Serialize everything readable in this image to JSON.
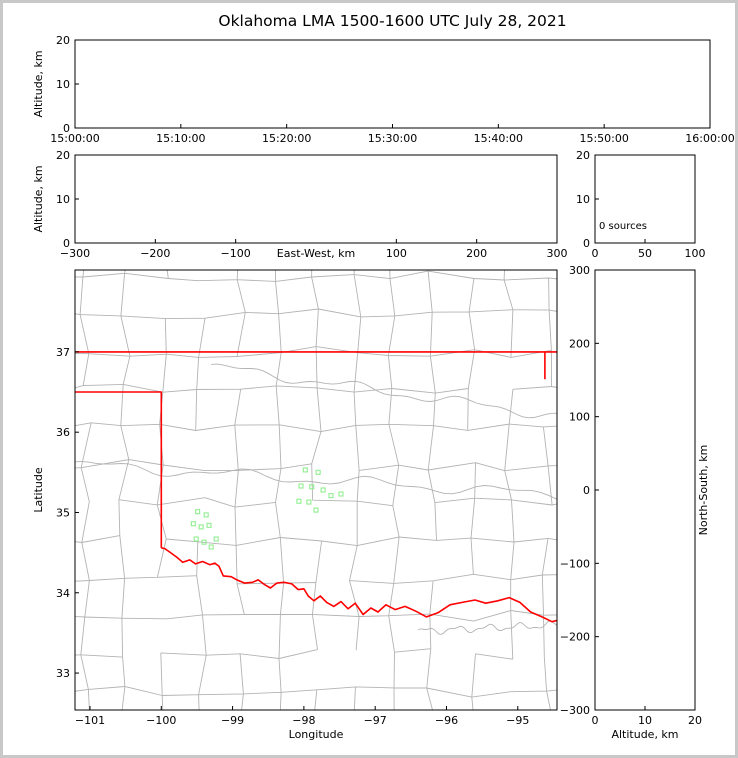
{
  "title": "Oklahoma LMA 1500-1600 UTC July 28, 2021",
  "colors": {
    "background": "#ffffff",
    "frame_border": "#c8c8c8",
    "axis": "#000000",
    "county_lines": "#b3b3b3",
    "state_border": "#ff0000",
    "sources": "#90ee90"
  },
  "chart_data": [
    {
      "name": "time_height",
      "type": "scatter",
      "xlabel": "",
      "ylabel": "Altitude, km",
      "x_ticks": [
        "15:00:00",
        "15:10:00",
        "15:20:00",
        "15:30:00",
        "15:40:00",
        "15:50:00",
        "16:00:00"
      ],
      "x_tick_vals": [
        0,
        1,
        2,
        3,
        4,
        5,
        6
      ],
      "xlim": [
        0,
        6
      ],
      "y_ticks": [
        "20",
        "10",
        "0"
      ],
      "y_tick_vals": [
        20,
        10,
        0
      ],
      "ylim": [
        0,
        20
      ],
      "points": []
    },
    {
      "name": "ew_height",
      "type": "scatter",
      "xlabel": "East-West, km",
      "xlabel_inline": true,
      "ylabel": "Altitude, km",
      "x_ticks": [
        "−300",
        "−200",
        "−100",
        "100",
        "200",
        "300"
      ],
      "x_tick_vals": [
        -300,
        -200,
        -100,
        100,
        200,
        300
      ],
      "xlim": [
        -300,
        300
      ],
      "y_ticks": [
        "20",
        "10",
        "0"
      ],
      "y_tick_vals": [
        20,
        10,
        0
      ],
      "ylim": [
        0,
        20
      ],
      "points": []
    },
    {
      "name": "altitude_histogram",
      "type": "histogram",
      "annotation": "0 sources",
      "x_ticks": [
        "0",
        "50",
        "100"
      ],
      "x_tick_vals": [
        0,
        50,
        100
      ],
      "xlim": [
        0,
        100
      ],
      "y_ticks": [
        "20",
        "10",
        "0"
      ],
      "y_tick_vals": [
        20,
        10,
        0
      ],
      "ylim": [
        0,
        20
      ],
      "points": []
    },
    {
      "name": "plan_view",
      "type": "scatter",
      "xlabel": "Longitude",
      "ylabel": "Latitude",
      "x_ticks": [
        "−101",
        "−100",
        "−99",
        "−98",
        "−97",
        "−96",
        "−95"
      ],
      "x_tick_vals": [
        -101,
        -100,
        -99,
        -98,
        -97,
        -96,
        -95
      ],
      "xlim": [
        -101.21,
        -94.45
      ],
      "y_ticks": [
        "37",
        "36",
        "35",
        "34",
        "33"
      ],
      "y_tick_vals": [
        37,
        36,
        35,
        34,
        33
      ],
      "ylim": [
        32.54,
        38.02
      ],
      "series": [
        {
          "name": "vhf_sources",
          "marker": "open-square",
          "color": "#90ee90",
          "points": [
            [
              -97.98,
              35.53
            ],
            [
              -97.8,
              35.5
            ],
            [
              -98.04,
              35.33
            ],
            [
              -97.89,
              35.32
            ],
            [
              -97.73,
              35.28
            ],
            [
              -98.07,
              35.14
            ],
            [
              -97.93,
              35.13
            ],
            [
              -97.62,
              35.21
            ],
            [
              -97.48,
              35.23
            ],
            [
              -97.83,
              35.03
            ],
            [
              -99.49,
              35.01
            ],
            [
              -99.37,
              34.97
            ],
            [
              -99.55,
              34.86
            ],
            [
              -99.44,
              34.82
            ],
            [
              -99.33,
              34.84
            ],
            [
              -99.51,
              34.67
            ],
            [
              -99.4,
              34.63
            ],
            [
              -99.3,
              34.57
            ],
            [
              -99.23,
              34.67
            ]
          ]
        }
      ],
      "state_border": [
        {
          "name": "kansas_line",
          "points": [
            [
              -101.3,
              37.0
            ],
            [
              -94.43,
              37.0
            ]
          ]
        },
        {
          "name": "panhandle",
          "points": [
            [
              -101.3,
              36.5
            ],
            [
              -100.0,
              36.5
            ],
            [
              -100.0,
              34.56
            ]
          ]
        },
        {
          "name": "east_border",
          "points": [
            [
              -94.62,
              37.0
            ],
            [
              -94.62,
              36.66
            ]
          ]
        },
        {
          "name": "red_river",
          "points": [
            [
              -100.0,
              34.56
            ],
            [
              -99.95,
              34.55
            ],
            [
              -99.87,
              34.5
            ],
            [
              -99.78,
              34.44
            ],
            [
              -99.7,
              34.38
            ],
            [
              -99.6,
              34.41
            ],
            [
              -99.52,
              34.36
            ],
            [
              -99.42,
              34.39
            ],
            [
              -99.32,
              34.35
            ],
            [
              -99.25,
              34.37
            ],
            [
              -99.19,
              34.33
            ],
            [
              -99.13,
              34.21
            ],
            [
              -99.02,
              34.2
            ],
            [
              -98.94,
              34.16
            ],
            [
              -98.83,
              34.12
            ],
            [
              -98.72,
              34.13
            ],
            [
              -98.64,
              34.16
            ],
            [
              -98.55,
              34.1
            ],
            [
              -98.47,
              34.06
            ],
            [
              -98.38,
              34.12
            ],
            [
              -98.28,
              34.13
            ],
            [
              -98.17,
              34.11
            ],
            [
              -98.08,
              34.04
            ],
            [
              -98.0,
              34.05
            ],
            [
              -97.94,
              33.96
            ],
            [
              -97.86,
              33.9
            ],
            [
              -97.77,
              33.96
            ],
            [
              -97.68,
              33.88
            ],
            [
              -97.58,
              33.83
            ],
            [
              -97.48,
              33.89
            ],
            [
              -97.38,
              33.8
            ],
            [
              -97.28,
              33.87
            ],
            [
              -97.17,
              33.73
            ],
            [
              -97.06,
              33.81
            ],
            [
              -96.96,
              33.76
            ],
            [
              -96.85,
              33.85
            ],
            [
              -96.72,
              33.79
            ],
            [
              -96.58,
              33.83
            ],
            [
              -96.43,
              33.77
            ],
            [
              -96.28,
              33.7
            ],
            [
              -96.12,
              33.75
            ],
            [
              -95.95,
              33.85
            ],
            [
              -95.78,
              33.88
            ],
            [
              -95.6,
              33.91
            ],
            [
              -95.45,
              33.87
            ],
            [
              -95.28,
              33.9
            ],
            [
              -95.12,
              33.94
            ],
            [
              -94.97,
              33.88
            ],
            [
              -94.82,
              33.76
            ],
            [
              -94.66,
              33.7
            ],
            [
              -94.52,
              33.64
            ],
            [
              -94.43,
              33.66
            ]
          ]
        }
      ]
    },
    {
      "name": "ns_height",
      "type": "scatter",
      "xlabel": "Altitude, km",
      "ylabel": "North-South, km",
      "ylabel_side": "right",
      "x_ticks": [
        "0",
        "10",
        "20"
      ],
      "x_tick_vals": [
        0,
        10,
        20
      ],
      "xlim": [
        0,
        20
      ],
      "y_ticks": [
        "300",
        "200",
        "100",
        "0",
        "−100",
        "−200",
        "−300"
      ],
      "y_tick_vals": [
        300,
        200,
        100,
        0,
        -100,
        -200,
        -300
      ],
      "ylim": [
        -300,
        300
      ],
      "points": []
    }
  ]
}
